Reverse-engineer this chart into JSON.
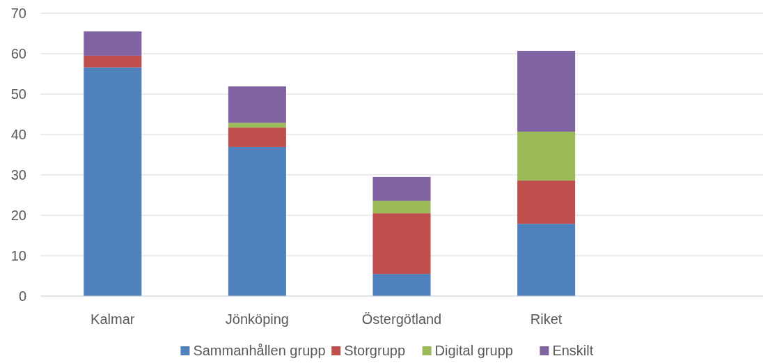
{
  "chart_data": {
    "type": "bar",
    "stacked": true,
    "categories": [
      "Kalmar",
      "Jönköping",
      "Östergötland",
      "Riket",
      null
    ],
    "series": [
      {
        "name": "Sammanhållen grupp",
        "color": "#4f81bd",
        "values": [
          56.6,
          36.9,
          5.5,
          17.9,
          null
        ]
      },
      {
        "name": "Storgrupp",
        "color": "#c0504d",
        "values": [
          2.9,
          4.8,
          15.0,
          10.7,
          null
        ]
      },
      {
        "name": "Digital grupp",
        "color": "#9bbb59",
        "values": [
          0,
          1.2,
          3.1,
          12.1,
          null
        ]
      },
      {
        "name": "Enskilt",
        "color": "#8064a2",
        "values": [
          6.0,
          9.0,
          5.9,
          20.0,
          null
        ]
      }
    ],
    "ylim": [
      0,
      70
    ],
    "yticks": [
      0,
      10,
      20,
      30,
      40,
      50,
      60,
      70
    ],
    "grid": "y",
    "legend": "bottom"
  }
}
